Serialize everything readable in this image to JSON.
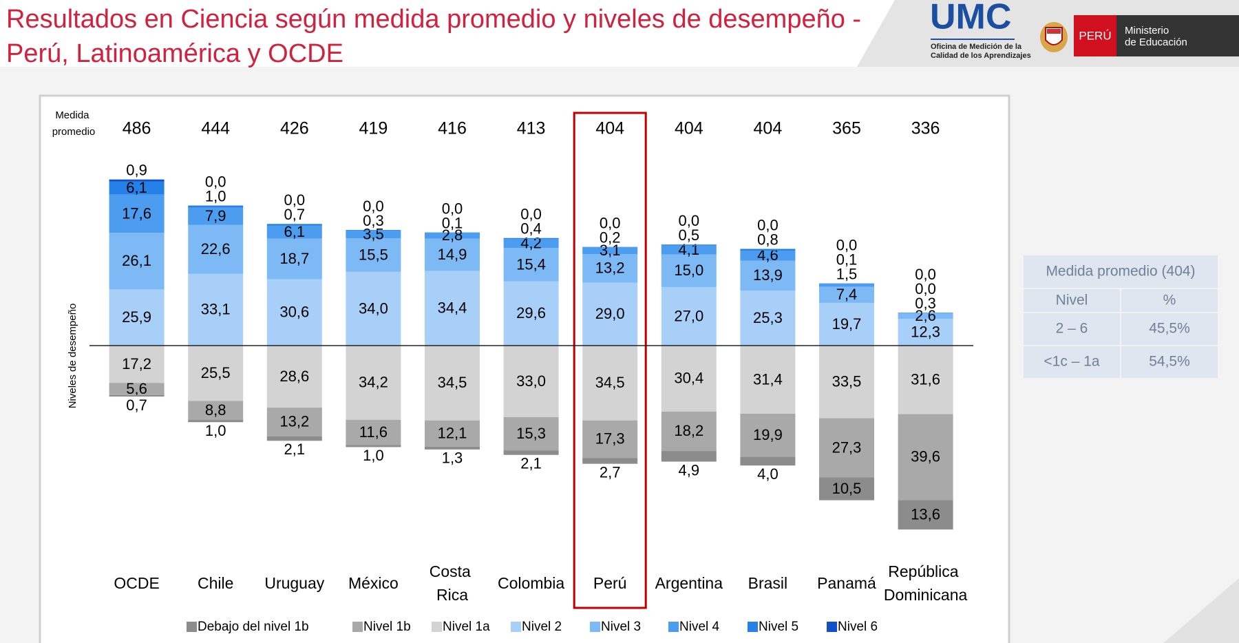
{
  "header": {
    "title_line1": "Resultados en Ciencia según medida promedio y niveles de desempeño -",
    "title_line2": "Perú, Latinoamérica y OCDE",
    "logo": "UMC",
    "logo_sub1": "Oficina de Medición de la",
    "logo_sub2": "Calidad de los Aprendizajes",
    "country": "PERÚ",
    "ministry1": "Ministerio",
    "ministry2": "de Educación"
  },
  "chart_data": {
    "type": "diverging_stacked_bar",
    "y_label": "Niveles de desempeño",
    "mean_label": "Medida promedio",
    "categories": [
      "OCDE",
      "Chile",
      "Uruguay",
      "México",
      "Costa Rica",
      "Colombia",
      "Perú",
      "Argentina",
      "Brasil",
      "Panamá",
      "República Dominicana"
    ],
    "means": [
      486,
      444,
      426,
      419,
      416,
      413,
      404,
      404,
      404,
      365,
      336
    ],
    "highlight_category": "Perú",
    "series": [
      {
        "name": "Debajo del nivel 1b",
        "side": "below",
        "color": "#8c8c8c",
        "values": [
          0.7,
          1.0,
          2.1,
          1.0,
          1.3,
          2.1,
          2.7,
          4.9,
          4.0,
          10.5,
          13.6
        ],
        "value_labels": [
          "0,7",
          "1,0",
          "2,1",
          "1,0",
          "1,3",
          "2,1",
          "2,7",
          "4,9",
          "4,0",
          "10,5",
          "13,6"
        ]
      },
      {
        "name": "Nivel 1b",
        "side": "below",
        "color": "#a9a9a9",
        "values": [
          5.6,
          8.8,
          13.2,
          11.6,
          12.1,
          15.3,
          17.3,
          18.2,
          19.9,
          27.3,
          39.6
        ],
        "value_labels": [
          "5,6",
          "8,8",
          "13,2",
          "11,6",
          "12,1",
          "15,3",
          "17,3",
          "18,2",
          "19,9",
          "27,3",
          "39,6"
        ]
      },
      {
        "name": "Nivel 1a",
        "side": "below",
        "color": "#d3d3d3",
        "values": [
          17.2,
          25.5,
          28.6,
          34.2,
          34.5,
          33.0,
          34.5,
          30.4,
          31.4,
          33.5,
          31.6
        ],
        "value_labels": [
          "17,2",
          "25,5",
          "28,6",
          "34,2",
          "34,5",
          "33,0",
          "34,5",
          "30,4",
          "31,4",
          "33,5",
          "31,6"
        ]
      },
      {
        "name": "Nivel 2",
        "side": "above",
        "color": "#a8cff8",
        "values": [
          25.9,
          33.1,
          30.6,
          34.0,
          34.4,
          29.6,
          29.0,
          27.0,
          25.3,
          19.7,
          12.3
        ],
        "value_labels": [
          "25,9",
          "33,1",
          "30,6",
          "34,0",
          "34,4",
          "29,6",
          "29,0",
          "27,0",
          "25,3",
          "19,7",
          "12,3"
        ]
      },
      {
        "name": "Nivel 3",
        "side": "above",
        "color": "#7db9f5",
        "values": [
          26.1,
          22.6,
          18.7,
          15.5,
          14.9,
          15.4,
          13.2,
          15.0,
          13.9,
          7.4,
          2.6
        ],
        "value_labels": [
          "26,1",
          "22,6",
          "18,7",
          "15,5",
          "14,9",
          "15,4",
          "13,2",
          "15,0",
          "13,9",
          "7,4",
          "2,6"
        ]
      },
      {
        "name": "Nivel 4",
        "side": "above",
        "color": "#4c9cf0",
        "values": [
          17.6,
          7.9,
          6.1,
          3.5,
          2.8,
          4.2,
          3.1,
          4.1,
          4.6,
          1.5,
          0.3
        ],
        "value_labels": [
          "17,6",
          "7,9",
          "6,1",
          "3,5",
          "2,8",
          "4,2",
          "3,1",
          "4,1",
          "4,6",
          "1,5",
          "0,3"
        ]
      },
      {
        "name": "Nivel 5",
        "side": "above",
        "color": "#2580e8",
        "values": [
          6.1,
          1.0,
          0.7,
          0.3,
          0.1,
          0.4,
          0.2,
          0.5,
          0.8,
          0.1,
          0.0
        ],
        "value_labels": [
          "6,1",
          "1,0",
          "0,7",
          "0,3",
          "0,1",
          "0,4",
          "0,2",
          "0,5",
          "0,8",
          "0,1",
          "0,0"
        ]
      },
      {
        "name": "Nivel 6",
        "side": "above",
        "color": "#1150c8",
        "values": [
          0.9,
          0.0,
          0.0,
          0.0,
          0.0,
          0.0,
          0.0,
          0.0,
          0.0,
          0.0,
          0.0
        ],
        "value_labels": [
          "0,9",
          "0,0",
          "0,0",
          "0,0",
          "0,0",
          "0,0",
          "0,0",
          "0,0",
          "0,0",
          "0,0",
          "0,0"
        ]
      }
    ]
  },
  "summary_table": {
    "title": "Medida promedio (404)",
    "header": [
      "Nivel",
      "%"
    ],
    "rows": [
      [
        "2 – 6",
        "45,5%"
      ],
      [
        "<1c – 1a",
        "54,5%"
      ]
    ]
  }
}
